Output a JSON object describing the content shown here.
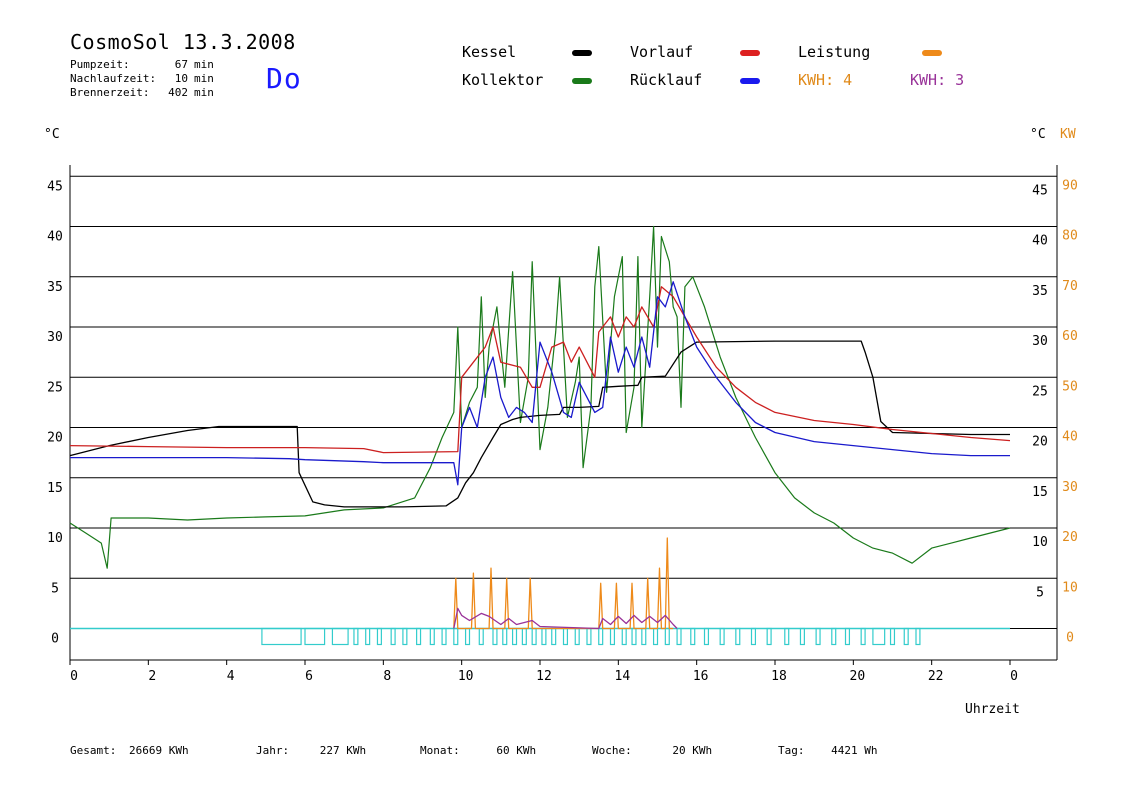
{
  "header": {
    "title": "CosmoSol 13.3.2008",
    "stats": [
      {
        "label": "Pumpzeit:",
        "value": "67",
        "unit": "min"
      },
      {
        "label": "Nachlaufzeit:",
        "value": "10",
        "unit": "min"
      },
      {
        "label": "Brennerzeit:",
        "value": "402",
        "unit": "min"
      }
    ],
    "day": "Do"
  },
  "legend": {
    "kessel": "Kessel",
    "kollektor": "Kollektor",
    "vorlauf": "Vorlauf",
    "ruecklauf": "Rücklauf",
    "leistung": "Leistung",
    "kwh1": "KWH: 4",
    "kwh2": "KWH: 3"
  },
  "colors": {
    "kessel": "#000000",
    "kollektor": "#1a7a1a",
    "vorlauf": "#cc2020",
    "ruecklauf": "#1a1acc",
    "leistung": "#ee8a1a",
    "kwh2": "#993399",
    "pump": "#33cccc",
    "axis_right2": "#e08a1a"
  },
  "axes": {
    "left_unit": "°C",
    "right_unit": "°C",
    "right_unit2": "KW",
    "xlabel": "Uhrzeit"
  },
  "footer": [
    {
      "label": "Gesamt:",
      "value": "26669 KWh"
    },
    {
      "label": "Jahr:",
      "value": "227 KWh"
    },
    {
      "label": "Monat:",
      "value": "60 KWh"
    },
    {
      "label": "Woche:",
      "value": "20 KWh"
    },
    {
      "label": "Tag:",
      "value": "4421 Wh"
    }
  ],
  "chart_data": {
    "type": "line",
    "title": "CosmoSol 13.3.2008",
    "xlabel": "Uhrzeit",
    "ylabel": "°C",
    "xlim": [
      0,
      24
    ],
    "ylim": [
      -3,
      46
    ],
    "grid": true,
    "x_ticks": [
      "0",
      "2",
      "4",
      "6",
      "8",
      "10",
      "12",
      "14",
      "16",
      "18",
      "20",
      "22",
      "0"
    ],
    "y_ticks_left": [
      "0",
      "5",
      "10",
      "15",
      "20",
      "25",
      "30",
      "35",
      "40",
      "45"
    ],
    "y_ticks_right": [
      "5",
      "10",
      "15",
      "20",
      "25",
      "30",
      "35",
      "40",
      "45"
    ],
    "y_ticks_right_kw": [
      "0",
      "10",
      "20",
      "30",
      "40",
      "50",
      "60",
      "70",
      "80",
      "90"
    ],
    "series": [
      {
        "name": "Kessel",
        "key": "kessel",
        "points": [
          [
            0,
            17.2
          ],
          [
            1,
            18.2
          ],
          [
            2,
            19
          ],
          [
            3,
            19.7
          ],
          [
            3.8,
            20.1
          ],
          [
            5.8,
            20.1
          ],
          [
            5.85,
            15.5
          ],
          [
            6.2,
            12.6
          ],
          [
            6.5,
            12.3
          ],
          [
            7,
            12.1
          ],
          [
            8.5,
            12.1
          ],
          [
            9.6,
            12.2
          ],
          [
            9.9,
            13
          ],
          [
            10.1,
            14.5
          ],
          [
            10.3,
            15.5
          ],
          [
            10.5,
            17
          ],
          [
            10.8,
            19
          ],
          [
            11,
            20.3
          ],
          [
            11.3,
            20.8
          ],
          [
            11.5,
            21
          ],
          [
            12,
            21.2
          ],
          [
            12.5,
            21.3
          ],
          [
            12.6,
            22
          ],
          [
            13,
            22
          ],
          [
            13.5,
            22.1
          ],
          [
            13.6,
            24
          ],
          [
            14,
            24.1
          ],
          [
            14.5,
            24.2
          ],
          [
            14.6,
            25
          ],
          [
            15.2,
            25.1
          ],
          [
            15.6,
            27.5
          ],
          [
            16,
            28.5
          ],
          [
            18,
            28.6
          ],
          [
            20.2,
            28.6
          ],
          [
            20.3,
            27.5
          ],
          [
            20.5,
            25
          ],
          [
            20.7,
            20.6
          ],
          [
            21,
            19.5
          ],
          [
            23,
            19.3
          ],
          [
            24,
            19.3
          ]
        ]
      },
      {
        "name": "Kollektor",
        "key": "kollektor",
        "points": [
          [
            0,
            10.5
          ],
          [
            0.4,
            9.5
          ],
          [
            0.8,
            8.5
          ],
          [
            0.95,
            6
          ],
          [
            1.05,
            11
          ],
          [
            2,
            11
          ],
          [
            3,
            10.8
          ],
          [
            4,
            11
          ],
          [
            5,
            11.1
          ],
          [
            6,
            11.2
          ],
          [
            7,
            11.8
          ],
          [
            8,
            12
          ],
          [
            8.8,
            13
          ],
          [
            9.2,
            16
          ],
          [
            9.5,
            19
          ],
          [
            9.8,
            21.5
          ],
          [
            9.9,
            30
          ],
          [
            10,
            20
          ],
          [
            10.2,
            22.5
          ],
          [
            10.4,
            24
          ],
          [
            10.5,
            33
          ],
          [
            10.6,
            23
          ],
          [
            10.7,
            28
          ],
          [
            10.9,
            32
          ],
          [
            11.1,
            24
          ],
          [
            11.3,
            35.5
          ],
          [
            11.5,
            20.5
          ],
          [
            11.7,
            25
          ],
          [
            11.8,
            36.5
          ],
          [
            12.0,
            17.8
          ],
          [
            12.2,
            22
          ],
          [
            12.4,
            29.5
          ],
          [
            12.5,
            35
          ],
          [
            12.7,
            21
          ],
          [
            12.9,
            24.5
          ],
          [
            13.0,
            27
          ],
          [
            13.1,
            16
          ],
          [
            13.3,
            22
          ],
          [
            13.4,
            34
          ],
          [
            13.5,
            38
          ],
          [
            13.7,
            23.5
          ],
          [
            13.9,
            33
          ],
          [
            14.1,
            37
          ],
          [
            14.2,
            19.5
          ],
          [
            14.4,
            24
          ],
          [
            14.5,
            37
          ],
          [
            14.6,
            20
          ],
          [
            14.8,
            33
          ],
          [
            14.9,
            40
          ],
          [
            15.0,
            28
          ],
          [
            15.1,
            39
          ],
          [
            15.3,
            36.5
          ],
          [
            15.4,
            32
          ],
          [
            15.5,
            31
          ],
          [
            15.6,
            22
          ],
          [
            15.7,
            34
          ],
          [
            15.9,
            35
          ],
          [
            16.2,
            32
          ],
          [
            16.6,
            27
          ],
          [
            17,
            23
          ],
          [
            17.5,
            19
          ],
          [
            18,
            15.5
          ],
          [
            18.5,
            13
          ],
          [
            19,
            11.5
          ],
          [
            19.5,
            10.5
          ],
          [
            20,
            9
          ],
          [
            20.5,
            8
          ],
          [
            21,
            7.5
          ],
          [
            21.5,
            6.5
          ],
          [
            22,
            8
          ],
          [
            22.5,
            8.5
          ],
          [
            23,
            9
          ],
          [
            23.5,
            9.5
          ],
          [
            24,
            10
          ]
        ]
      },
      {
        "name": "Vorlauf",
        "key": "vorlauf",
        "points": [
          [
            0,
            18.2
          ],
          [
            2,
            18.1
          ],
          [
            4,
            18
          ],
          [
            6,
            18
          ],
          [
            7.5,
            17.9
          ],
          [
            8,
            17.5
          ],
          [
            9.9,
            17.6
          ],
          [
            10,
            25
          ],
          [
            10.3,
            26.5
          ],
          [
            10.6,
            28
          ],
          [
            10.8,
            30
          ],
          [
            11,
            26.5
          ],
          [
            11.5,
            26
          ],
          [
            11.8,
            24
          ],
          [
            12.0,
            24
          ],
          [
            12.3,
            28
          ],
          [
            12.6,
            28.5
          ],
          [
            12.8,
            26.5
          ],
          [
            13.0,
            28
          ],
          [
            13.4,
            25
          ],
          [
            13.5,
            29.5
          ],
          [
            13.8,
            31
          ],
          [
            14.0,
            29
          ],
          [
            14.2,
            31
          ],
          [
            14.4,
            30
          ],
          [
            14.6,
            32
          ],
          [
            14.9,
            30
          ],
          [
            15.1,
            34
          ],
          [
            15.4,
            33
          ],
          [
            15.7,
            31
          ],
          [
            16,
            29
          ],
          [
            16.5,
            26
          ],
          [
            17,
            24
          ],
          [
            17.5,
            22.5
          ],
          [
            18,
            21.5
          ],
          [
            19,
            20.7
          ],
          [
            20,
            20.3
          ],
          [
            21,
            19.8
          ],
          [
            22,
            19.4
          ],
          [
            23,
            19
          ],
          [
            24,
            18.7
          ]
        ]
      },
      {
        "name": "Rücklauf",
        "key": "ruecklauf",
        "points": [
          [
            0,
            17
          ],
          [
            2,
            17
          ],
          [
            4,
            17
          ],
          [
            5.6,
            16.9
          ],
          [
            6,
            16.8
          ],
          [
            7.5,
            16.6
          ],
          [
            8,
            16.5
          ],
          [
            9.8,
            16.5
          ],
          [
            9.9,
            14.3
          ],
          [
            10,
            20
          ],
          [
            10.2,
            22
          ],
          [
            10.4,
            20
          ],
          [
            10.6,
            25
          ],
          [
            10.8,
            27
          ],
          [
            11,
            23
          ],
          [
            11.2,
            21
          ],
          [
            11.4,
            22
          ],
          [
            11.6,
            21.5
          ],
          [
            11.8,
            20.5
          ],
          [
            12.0,
            28.5
          ],
          [
            12.3,
            25.5
          ],
          [
            12.6,
            21.5
          ],
          [
            12.8,
            21
          ],
          [
            13.0,
            24.5
          ],
          [
            13.4,
            21.5
          ],
          [
            13.6,
            22
          ],
          [
            13.8,
            29
          ],
          [
            14.0,
            25.5
          ],
          [
            14.2,
            28
          ],
          [
            14.4,
            26
          ],
          [
            14.6,
            29
          ],
          [
            14.8,
            26
          ],
          [
            15.0,
            33
          ],
          [
            15.2,
            32
          ],
          [
            15.4,
            34.5
          ],
          [
            15.7,
            31
          ],
          [
            16,
            28
          ],
          [
            16.5,
            25
          ],
          [
            17,
            22.5
          ],
          [
            17.5,
            20.5
          ],
          [
            18,
            19.5
          ],
          [
            19,
            18.6
          ],
          [
            20,
            18.2
          ],
          [
            21,
            17.8
          ],
          [
            22,
            17.4
          ],
          [
            23,
            17.2
          ],
          [
            24,
            17.2
          ]
        ]
      },
      {
        "name": "Leistung",
        "key": "leistung",
        "points": [
          [
            9.8,
            0
          ],
          [
            9.85,
            5
          ],
          [
            9.9,
            0
          ],
          [
            10.25,
            0
          ],
          [
            10.3,
            5.5
          ],
          [
            10.35,
            0
          ],
          [
            10.7,
            0
          ],
          [
            10.75,
            6
          ],
          [
            10.8,
            0
          ],
          [
            11.1,
            0
          ],
          [
            11.15,
            5
          ],
          [
            11.2,
            0
          ],
          [
            11.7,
            0
          ],
          [
            11.75,
            5
          ],
          [
            11.8,
            0
          ],
          [
            13.5,
            0
          ],
          [
            13.55,
            4.5
          ],
          [
            13.6,
            0
          ],
          [
            13.9,
            0
          ],
          [
            13.95,
            4.5
          ],
          [
            14.0,
            0
          ],
          [
            14.3,
            0
          ],
          [
            14.35,
            4.5
          ],
          [
            14.4,
            0
          ],
          [
            14.7,
            0
          ],
          [
            14.75,
            5
          ],
          [
            14.8,
            0
          ],
          [
            15.0,
            0
          ],
          [
            15.05,
            6
          ],
          [
            15.1,
            0
          ],
          [
            15.2,
            0
          ],
          [
            15.25,
            9
          ],
          [
            15.3,
            0
          ],
          [
            15.4,
            0
          ]
        ]
      },
      {
        "name": "KWH",
        "key": "kwh2",
        "points": [
          [
            9.8,
            0
          ],
          [
            9.9,
            2
          ],
          [
            10.0,
            1.3
          ],
          [
            10.2,
            0.8
          ],
          [
            10.5,
            1.5
          ],
          [
            10.7,
            1.2
          ],
          [
            11.0,
            0.4
          ],
          [
            11.2,
            1.0
          ],
          [
            11.4,
            0.4
          ],
          [
            11.8,
            0.8
          ],
          [
            12.0,
            0.2
          ],
          [
            13.5,
            0
          ],
          [
            13.6,
            1.0
          ],
          [
            13.8,
            0.4
          ],
          [
            14.0,
            1.2
          ],
          [
            14.2,
            0.5
          ],
          [
            14.4,
            1.3
          ],
          [
            14.6,
            0.6
          ],
          [
            14.8,
            1.2
          ],
          [
            15.0,
            0.6
          ],
          [
            15.2,
            1.3
          ],
          [
            15.4,
            0.4
          ],
          [
            15.5,
            0
          ]
        ]
      }
    ],
    "pump_blocks": [
      [
        4.9,
        5.9
      ],
      [
        6.0,
        6.5
      ],
      [
        6.7,
        7.1
      ],
      [
        7.25,
        7.35
      ],
      [
        7.55,
        7.65
      ],
      [
        7.85,
        7.95
      ],
      [
        8.2,
        8.3
      ],
      [
        8.5,
        8.6
      ],
      [
        8.85,
        8.95
      ],
      [
        9.2,
        9.3
      ],
      [
        9.5,
        9.6
      ],
      [
        9.8,
        9.9
      ],
      [
        10.1,
        10.2
      ],
      [
        10.45,
        10.55
      ],
      [
        10.8,
        10.9
      ],
      [
        11.05,
        11.15
      ],
      [
        11.3,
        11.4
      ],
      [
        11.55,
        11.65
      ],
      [
        11.8,
        11.9
      ],
      [
        12.05,
        12.15
      ],
      [
        12.3,
        12.4
      ],
      [
        12.6,
        12.7
      ],
      [
        12.9,
        13.0
      ],
      [
        13.2,
        13.3
      ],
      [
        13.5,
        13.6
      ],
      [
        13.8,
        13.9
      ],
      [
        14.1,
        14.2
      ],
      [
        14.35,
        14.45
      ],
      [
        14.6,
        14.7
      ],
      [
        14.9,
        15.0
      ],
      [
        15.2,
        15.3
      ],
      [
        15.5,
        15.6
      ],
      [
        15.85,
        15.95
      ],
      [
        16.2,
        16.3
      ],
      [
        16.6,
        16.7
      ],
      [
        17.0,
        17.1
      ],
      [
        17.4,
        17.5
      ],
      [
        17.8,
        17.9
      ],
      [
        18.25,
        18.35
      ],
      [
        18.65,
        18.75
      ],
      [
        19.05,
        19.15
      ],
      [
        19.45,
        19.55
      ],
      [
        19.8,
        19.9
      ],
      [
        20.2,
        20.3
      ],
      [
        20.5,
        20.8
      ],
      [
        20.95,
        21.05
      ],
      [
        21.3,
        21.4
      ],
      [
        21.6,
        21.7
      ]
    ]
  }
}
